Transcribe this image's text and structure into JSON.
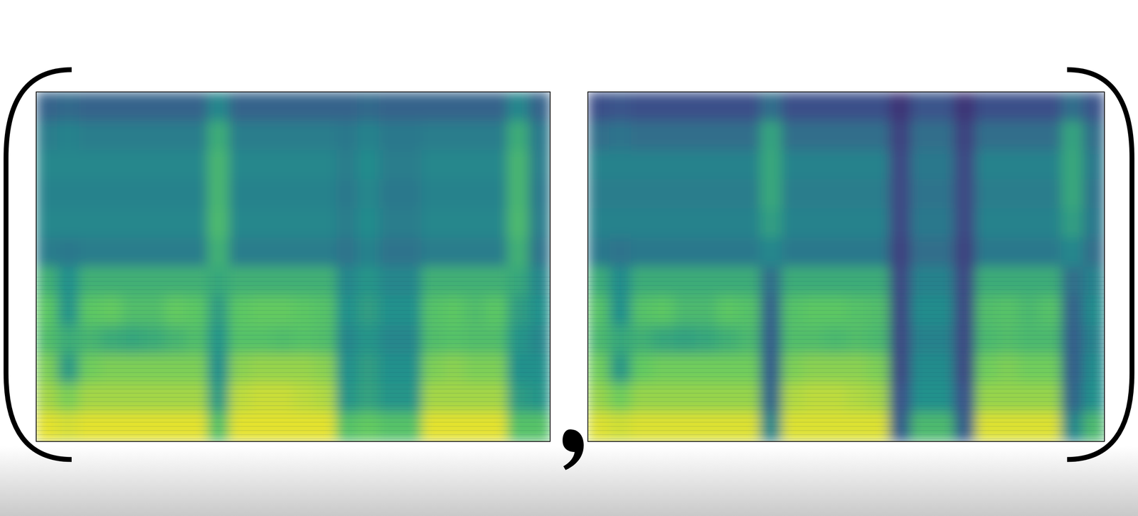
{
  "chart_data": [
    {
      "type": "heatmap",
      "tick_labels": false,
      "zlim": [
        0,
        1
      ],
      "cells": [
        [
          0.32,
          0.34,
          0.32,
          0.32,
          0.32,
          0.32,
          0.32,
          0.32,
          0.46,
          0.32,
          0.32,
          0.32,
          0.32,
          0.32,
          0.32,
          0.34,
          0.32,
          0.32,
          0.32,
          0.32,
          0.32,
          0.32,
          0.46,
          0.32
        ],
        [
          0.42,
          0.44,
          0.42,
          0.42,
          0.42,
          0.42,
          0.42,
          0.42,
          0.62,
          0.42,
          0.42,
          0.42,
          0.42,
          0.42,
          0.4,
          0.44,
          0.4,
          0.4,
          0.42,
          0.42,
          0.42,
          0.42,
          0.62,
          0.4
        ],
        [
          0.46,
          0.46,
          0.46,
          0.46,
          0.46,
          0.46,
          0.46,
          0.46,
          0.66,
          0.46,
          0.46,
          0.46,
          0.46,
          0.46,
          0.42,
          0.48,
          0.42,
          0.42,
          0.46,
          0.46,
          0.46,
          0.46,
          0.66,
          0.42
        ],
        [
          0.44,
          0.44,
          0.44,
          0.44,
          0.44,
          0.44,
          0.44,
          0.44,
          0.66,
          0.44,
          0.44,
          0.44,
          0.44,
          0.44,
          0.4,
          0.46,
          0.4,
          0.4,
          0.44,
          0.44,
          0.44,
          0.44,
          0.66,
          0.4
        ],
        [
          0.46,
          0.46,
          0.46,
          0.46,
          0.46,
          0.46,
          0.46,
          0.46,
          0.68,
          0.46,
          0.46,
          0.46,
          0.46,
          0.46,
          0.42,
          0.48,
          0.42,
          0.42,
          0.46,
          0.46,
          0.46,
          0.46,
          0.68,
          0.42
        ],
        [
          0.42,
          0.4,
          0.42,
          0.42,
          0.42,
          0.42,
          0.42,
          0.42,
          0.64,
          0.42,
          0.42,
          0.42,
          0.42,
          0.42,
          0.38,
          0.44,
          0.38,
          0.38,
          0.42,
          0.42,
          0.42,
          0.42,
          0.64,
          0.38
        ],
        [
          0.64,
          0.5,
          0.64,
          0.64,
          0.64,
          0.64,
          0.64,
          0.64,
          0.6,
          0.64,
          0.64,
          0.64,
          0.64,
          0.64,
          0.46,
          0.52,
          0.46,
          0.46,
          0.64,
          0.64,
          0.64,
          0.64,
          0.6,
          0.46
        ],
        [
          0.74,
          0.52,
          0.74,
          0.76,
          0.7,
          0.7,
          0.76,
          0.74,
          0.56,
          0.74,
          0.76,
          0.76,
          0.74,
          0.72,
          0.5,
          0.56,
          0.5,
          0.5,
          0.72,
          0.74,
          0.7,
          0.74,
          0.56,
          0.5
        ],
        [
          0.7,
          0.62,
          0.66,
          0.62,
          0.6,
          0.62,
          0.66,
          0.7,
          0.52,
          0.72,
          0.72,
          0.7,
          0.72,
          0.7,
          0.46,
          0.52,
          0.46,
          0.46,
          0.7,
          0.72,
          0.7,
          0.7,
          0.52,
          0.46
        ],
        [
          0.8,
          0.55,
          0.78,
          0.8,
          0.8,
          0.8,
          0.8,
          0.8,
          0.5,
          0.82,
          0.84,
          0.84,
          0.84,
          0.82,
          0.5,
          0.56,
          0.5,
          0.5,
          0.8,
          0.82,
          0.8,
          0.8,
          0.5,
          0.5
        ],
        [
          0.86,
          0.8,
          0.86,
          0.86,
          0.86,
          0.86,
          0.86,
          0.86,
          0.55,
          0.9,
          0.92,
          0.92,
          0.9,
          0.88,
          0.52,
          0.58,
          0.52,
          0.52,
          0.86,
          0.86,
          0.86,
          0.86,
          0.55,
          0.52
        ],
        [
          0.96,
          0.94,
          0.96,
          0.96,
          0.96,
          0.96,
          0.96,
          0.96,
          0.72,
          0.96,
          0.96,
          0.96,
          0.96,
          0.96,
          0.72,
          0.76,
          0.72,
          0.72,
          0.96,
          0.96,
          0.96,
          0.96,
          0.72,
          0.72
        ]
      ]
    },
    {
      "type": "heatmap",
      "tick_labels": false,
      "zlim": [
        0,
        1
      ],
      "cells": [
        [
          0.24,
          0.26,
          0.24,
          0.24,
          0.24,
          0.24,
          0.24,
          0.24,
          0.36,
          0.24,
          0.24,
          0.24,
          0.24,
          0.24,
          0.16,
          0.26,
          0.26,
          0.16,
          0.24,
          0.24,
          0.24,
          0.24,
          0.36,
          0.26
        ],
        [
          0.36,
          0.38,
          0.36,
          0.36,
          0.36,
          0.36,
          0.36,
          0.36,
          0.58,
          0.36,
          0.36,
          0.36,
          0.36,
          0.36,
          0.2,
          0.36,
          0.36,
          0.2,
          0.36,
          0.36,
          0.36,
          0.36,
          0.58,
          0.36
        ],
        [
          0.44,
          0.44,
          0.44,
          0.44,
          0.44,
          0.44,
          0.44,
          0.44,
          0.6,
          0.44,
          0.44,
          0.44,
          0.44,
          0.44,
          0.22,
          0.4,
          0.4,
          0.22,
          0.44,
          0.44,
          0.44,
          0.44,
          0.6,
          0.4
        ],
        [
          0.42,
          0.42,
          0.42,
          0.42,
          0.42,
          0.42,
          0.42,
          0.42,
          0.6,
          0.42,
          0.42,
          0.42,
          0.42,
          0.42,
          0.22,
          0.38,
          0.38,
          0.22,
          0.42,
          0.42,
          0.42,
          0.42,
          0.6,
          0.38
        ],
        [
          0.44,
          0.44,
          0.44,
          0.44,
          0.44,
          0.44,
          0.44,
          0.44,
          0.56,
          0.44,
          0.44,
          0.44,
          0.44,
          0.44,
          0.22,
          0.4,
          0.4,
          0.22,
          0.44,
          0.44,
          0.44,
          0.44,
          0.56,
          0.4
        ],
        [
          0.4,
          0.38,
          0.4,
          0.4,
          0.4,
          0.4,
          0.4,
          0.4,
          0.46,
          0.4,
          0.4,
          0.4,
          0.4,
          0.4,
          0.2,
          0.36,
          0.36,
          0.2,
          0.4,
          0.4,
          0.4,
          0.4,
          0.46,
          0.36
        ],
        [
          0.62,
          0.48,
          0.62,
          0.62,
          0.62,
          0.62,
          0.62,
          0.62,
          0.36,
          0.62,
          0.62,
          0.62,
          0.62,
          0.62,
          0.22,
          0.44,
          0.44,
          0.22,
          0.62,
          0.62,
          0.62,
          0.62,
          0.36,
          0.44
        ],
        [
          0.72,
          0.5,
          0.72,
          0.74,
          0.68,
          0.68,
          0.74,
          0.72,
          0.32,
          0.72,
          0.74,
          0.74,
          0.72,
          0.7,
          0.22,
          0.48,
          0.48,
          0.22,
          0.7,
          0.72,
          0.68,
          0.72,
          0.32,
          0.48
        ],
        [
          0.68,
          0.6,
          0.64,
          0.6,
          0.58,
          0.6,
          0.64,
          0.68,
          0.3,
          0.7,
          0.7,
          0.68,
          0.7,
          0.68,
          0.22,
          0.44,
          0.44,
          0.22,
          0.68,
          0.7,
          0.68,
          0.68,
          0.3,
          0.44
        ],
        [
          0.78,
          0.54,
          0.76,
          0.78,
          0.78,
          0.78,
          0.78,
          0.78,
          0.3,
          0.8,
          0.82,
          0.82,
          0.82,
          0.8,
          0.22,
          0.48,
          0.48,
          0.22,
          0.78,
          0.8,
          0.78,
          0.78,
          0.3,
          0.48
        ],
        [
          0.84,
          0.78,
          0.84,
          0.84,
          0.84,
          0.84,
          0.84,
          0.84,
          0.33,
          0.88,
          0.9,
          0.9,
          0.88,
          0.86,
          0.25,
          0.5,
          0.5,
          0.25,
          0.84,
          0.84,
          0.84,
          0.84,
          0.33,
          0.5
        ],
        [
          0.95,
          0.93,
          0.95,
          0.95,
          0.95,
          0.95,
          0.95,
          0.95,
          0.46,
          0.95,
          0.95,
          0.95,
          0.95,
          0.95,
          0.3,
          0.68,
          0.68,
          0.3,
          0.95,
          0.95,
          0.95,
          0.95,
          0.46,
          0.68
        ]
      ]
    }
  ]
}
